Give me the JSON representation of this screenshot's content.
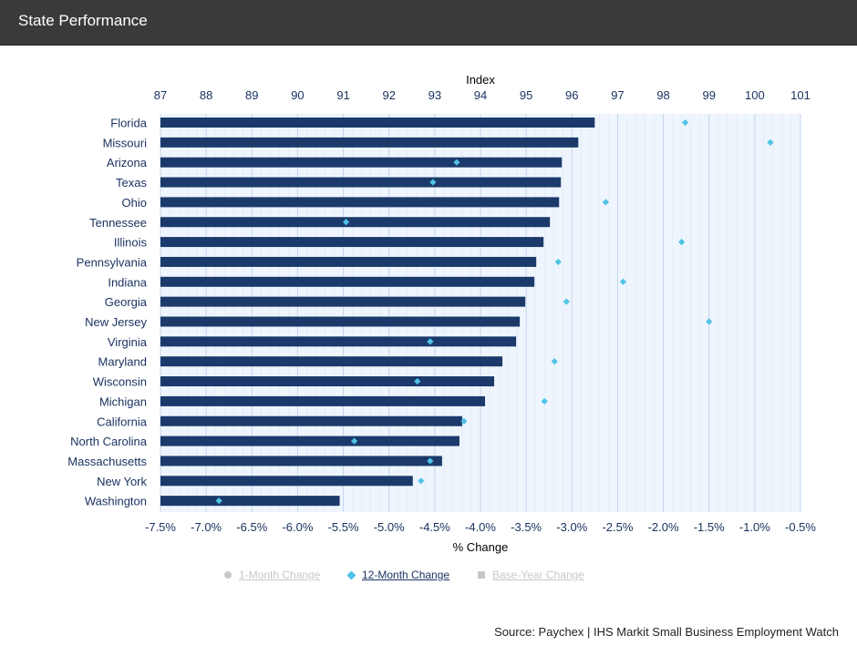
{
  "header": {
    "title": "State Performance"
  },
  "legend": [
    {
      "label": "1-Month Change",
      "marker": "dot",
      "color": "#c8c8c8",
      "active": false
    },
    {
      "label": "12-Month Change",
      "marker": "diamond",
      "color": "#4fc3e6",
      "active": true
    },
    {
      "label": "Base-Year Change",
      "marker": "square",
      "color": "#c8c8c8",
      "active": false
    }
  ],
  "source": "Source: Paychex | IHS Markit Small Business Employment Watch",
  "chart_data": {
    "type": "bar",
    "orientation": "horizontal",
    "top_axis": {
      "title": "Index",
      "min": 87,
      "max": 101,
      "ticks": [
        87,
        88,
        89,
        90,
        91,
        92,
        93,
        94,
        95,
        96,
        97,
        98,
        99,
        100,
        101
      ]
    },
    "bottom_axis": {
      "title": "% Change",
      "min": -7.5,
      "max": -0.5,
      "ticks": [
        "-7.5%",
        "-7.0%",
        "-6.5%",
        "-6.0%",
        "-5.5%",
        "-5.0%",
        "-4.5%",
        "-4.0%",
        "-3.5%",
        "-3.0%",
        "-2.5%",
        "-2.0%",
        "-1.5%",
        "-1.0%",
        "-0.5%"
      ]
    },
    "categories": [
      "Florida",
      "Missouri",
      "Arizona",
      "Texas",
      "Ohio",
      "Tennessee",
      "Illinois",
      "Pennsylvania",
      "Indiana",
      "Georgia",
      "New Jersey",
      "Virginia",
      "Maryland",
      "Wisconsin",
      "Michigan",
      "California",
      "North Carolina",
      "Massachusetts",
      "New York",
      "Washington"
    ],
    "series": [
      {
        "name": "Index",
        "type": "bar",
        "axis": "top",
        "color": "#1b3a6b",
        "values": [
          96.5,
          96.14,
          95.78,
          95.76,
          95.72,
          95.52,
          95.38,
          95.22,
          95.18,
          94.98,
          94.86,
          94.78,
          94.48,
          94.3,
          94.1,
          93.6,
          93.54,
          93.16,
          92.52,
          90.92
        ]
      },
      {
        "name": "12-Month Change",
        "type": "scatter",
        "axis": "bottom",
        "color": "#4fc3e6",
        "values": [
          -1.76,
          -0.83,
          -4.26,
          -4.52,
          -2.63,
          -5.47,
          -1.8,
          -3.15,
          -2.44,
          -3.06,
          -1.5,
          -4.55,
          -3.19,
          -4.69,
          -3.3,
          -4.18,
          -5.38,
          -4.55,
          -4.65,
          -6.86
        ]
      }
    ],
    "grid": "vertical",
    "legend_position": "bottom"
  }
}
